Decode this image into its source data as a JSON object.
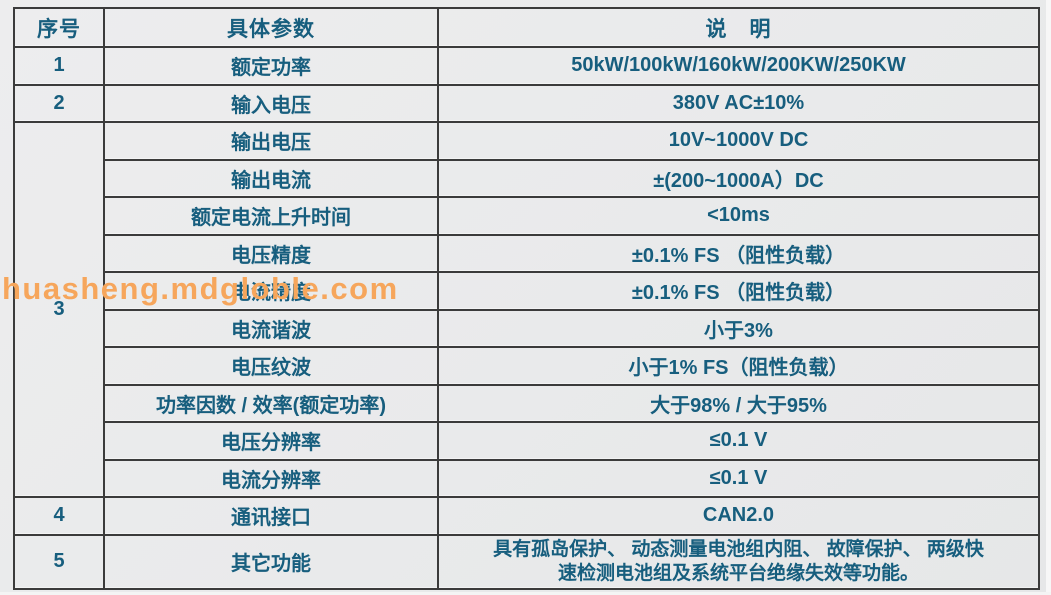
{
  "watermark": {
    "text": "huasheng.mdgloble.com",
    "color": "#F6A65C"
  },
  "colors": {
    "text": "#175E7E",
    "border": "#3B3B3B",
    "background": "#E9EAEB"
  },
  "table": {
    "headers": [
      "序号",
      "具体参数",
      "说　明"
    ],
    "rows": [
      {
        "no": "1",
        "param": "额定功率",
        "desc": "50kW/100kW/160kW/200KW/250KW"
      },
      {
        "no": "2",
        "param": "输入电压",
        "desc": "380V AC±10%"
      },
      {
        "no": "3",
        "param": "输出电压",
        "desc": "10V~1000V DC"
      },
      {
        "param": "输出电流",
        "desc": "±(200~1000A）DC"
      },
      {
        "param": "额定电流上升时间",
        "desc": "<10ms"
      },
      {
        "param": "电压精度",
        "desc": "±0.1% FS （阻性负载）"
      },
      {
        "param": "电流精度",
        "desc": "±0.1% FS （阻性负载）"
      },
      {
        "param": "电流谐波",
        "desc": "小于3%"
      },
      {
        "param": "电压纹波",
        "desc": "小于1% FS（阻性负载）"
      },
      {
        "param": "功率因数 / 效率(额定功率)",
        "desc": "大于98% / 大于95%"
      },
      {
        "param": "电压分辨率",
        "desc": "≤0.1 V"
      },
      {
        "param": "电流分辨率",
        "desc": "≤0.1 V"
      },
      {
        "no": "4",
        "param": "通讯接口",
        "desc": "CAN2.0"
      },
      {
        "no": "5",
        "param": "其它功能",
        "desc": "具有孤岛保护、 动态测量电池组内阻、 故障保护、 两级快\n速检测电池组及系统平台绝缘失效等功能。"
      }
    ]
  }
}
